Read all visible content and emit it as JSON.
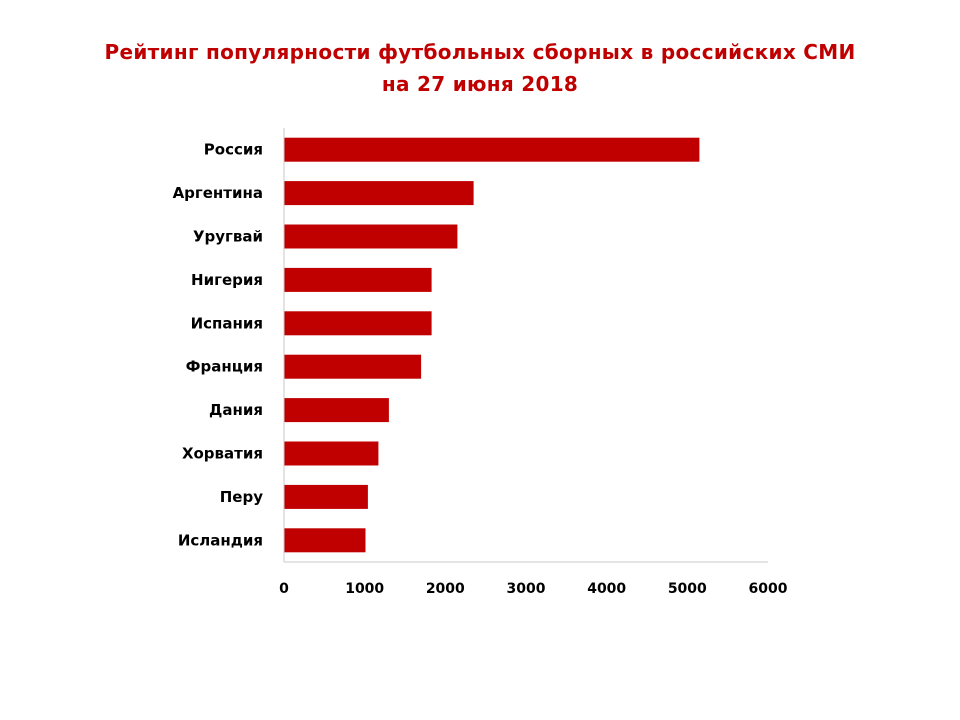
{
  "chart_data": {
    "type": "bar",
    "orientation": "horizontal",
    "title": "Рейтинг популярности футбольных сборных  в российских СМИ",
    "subtitle": "на 27 июня 2018",
    "categories": [
      "Россия",
      "Аргентина",
      "Уругвай",
      "Нигерия",
      "Испания",
      "Франция",
      "Дания",
      "Хорватия",
      "Перу",
      "Исландия"
    ],
    "values": [
      5150,
      2350,
      2150,
      1830,
      1830,
      1700,
      1300,
      1170,
      1040,
      1010
    ],
    "xlim": [
      0,
      6000
    ],
    "xticks": [
      "0",
      "1000",
      "2000",
      "3000",
      "4000",
      "5000",
      "6000"
    ],
    "grid": false,
    "bar_color": "#c00000",
    "title_color": "#c00000"
  }
}
